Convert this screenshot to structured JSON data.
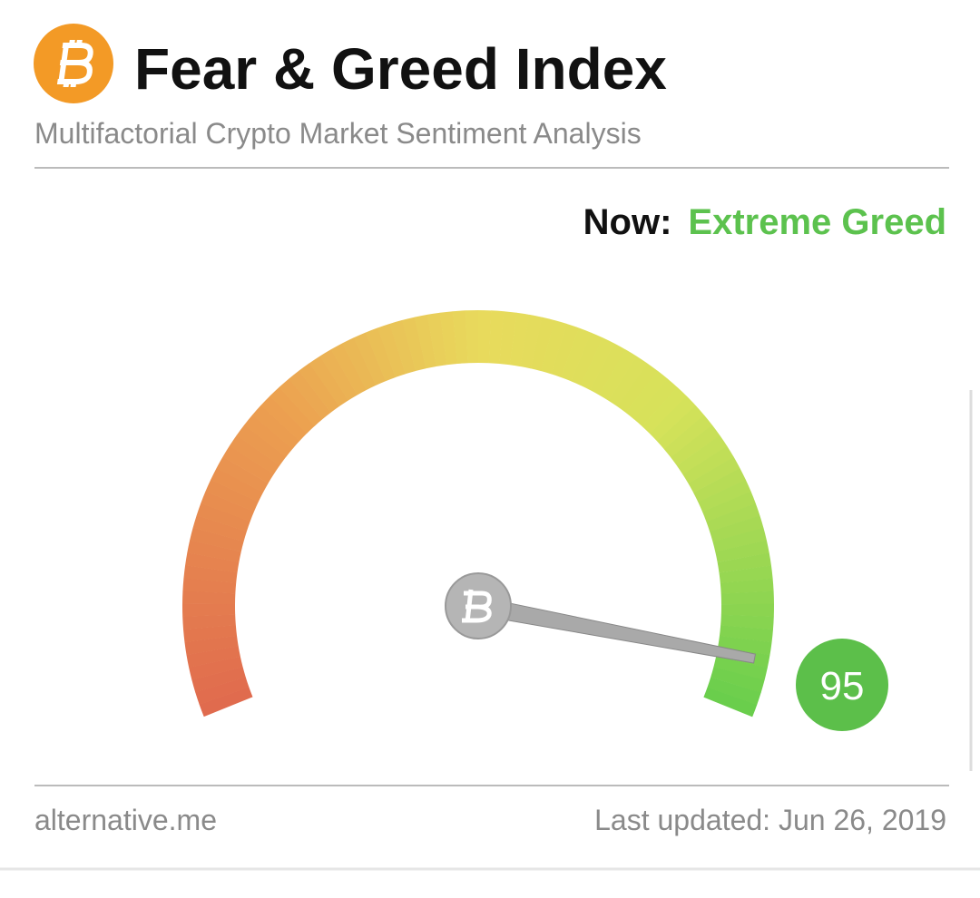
{
  "chart_data": {
    "type": "gauge",
    "title": "Fear & Greed Index",
    "subtitle": "Multifactorial Crypto Market Sentiment Analysis",
    "status_label": "Now:",
    "status": "Extreme Greed",
    "value": 95,
    "ylim": [
      0,
      100
    ],
    "color": "#5cbf4a",
    "source": "alternative.me",
    "updated": "Last updated: Jun 26, 2019"
  }
}
